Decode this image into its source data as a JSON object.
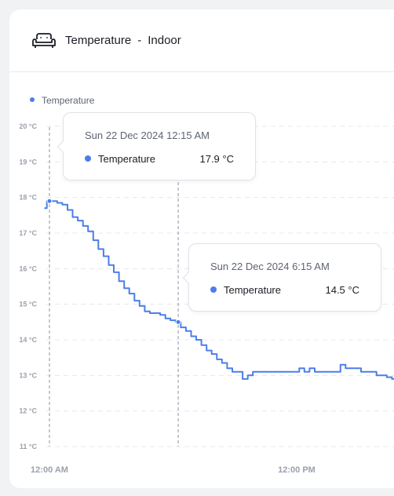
{
  "header": {
    "icon": "sofa-icon",
    "title": "Temperature",
    "separator": "-",
    "subtitle": "Indoor"
  },
  "colors": {
    "series": "#4c7ee8",
    "grid": "#e6e8ec",
    "axis_text": "#9aa0ad"
  },
  "tooltips": [
    {
      "date": "Sun 22 Dec 2024 12:15 AM",
      "series": "Temperature",
      "value": "17.9 °C"
    },
    {
      "date": "Sun 22 Dec 2024 6:15 AM",
      "series": "Temperature",
      "value": "14.5 °C"
    }
  ],
  "chart_data": {
    "type": "line",
    "legend": [
      "Temperature"
    ],
    "legend_position": "top-left",
    "grid": true,
    "ylim": [
      11,
      20
    ],
    "y_unit": "°C",
    "y_ticks": [
      "11 °C",
      "12 °C",
      "13 °C",
      "14 °C",
      "15 °C",
      "16 °C",
      "17 °C",
      "18 °C",
      "19 °C",
      "20 °C"
    ],
    "x_tick_labels": [
      {
        "label": "12:00 AM",
        "hour": 0
      },
      {
        "label": "12:00 PM",
        "hour": 12
      }
    ],
    "series": [
      {
        "name": "Temperature",
        "points": [
          [
            -0.25,
            17.7
          ],
          [
            0,
            17.9
          ],
          [
            0.25,
            17.9
          ],
          [
            0.5,
            17.85
          ],
          [
            0.75,
            17.8
          ],
          [
            1,
            17.65
          ],
          [
            1.25,
            17.45
          ],
          [
            1.5,
            17.35
          ],
          [
            1.75,
            17.2
          ],
          [
            2,
            17.05
          ],
          [
            2.25,
            16.8
          ],
          [
            2.5,
            16.55
          ],
          [
            2.75,
            16.35
          ],
          [
            3,
            16.1
          ],
          [
            3.25,
            15.9
          ],
          [
            3.5,
            15.65
          ],
          [
            3.75,
            15.45
          ],
          [
            4,
            15.3
          ],
          [
            4.25,
            15.1
          ],
          [
            4.5,
            14.95
          ],
          [
            4.75,
            14.8
          ],
          [
            5,
            14.75
          ],
          [
            5.25,
            14.75
          ],
          [
            5.5,
            14.7
          ],
          [
            5.75,
            14.6
          ],
          [
            6,
            14.55
          ],
          [
            6.25,
            14.5
          ],
          [
            6.5,
            14.35
          ],
          [
            6.75,
            14.25
          ],
          [
            7,
            14.1
          ],
          [
            7.25,
            14.0
          ],
          [
            7.5,
            13.85
          ],
          [
            7.75,
            13.7
          ],
          [
            8,
            13.6
          ],
          [
            8.25,
            13.45
          ],
          [
            8.5,
            13.35
          ],
          [
            8.75,
            13.2
          ],
          [
            9,
            13.1
          ],
          [
            9.25,
            13.1
          ],
          [
            9.5,
            12.9
          ],
          [
            9.75,
            13.0
          ],
          [
            10,
            13.1
          ],
          [
            10.5,
            13.1
          ],
          [
            11,
            13.1
          ],
          [
            11.5,
            13.1
          ],
          [
            12,
            13.1
          ],
          [
            12.25,
            13.2
          ],
          [
            12.5,
            13.1
          ],
          [
            12.75,
            13.2
          ],
          [
            13,
            13.1
          ],
          [
            13.5,
            13.1
          ],
          [
            14,
            13.1
          ],
          [
            14.25,
            13.3
          ],
          [
            14.5,
            13.2
          ],
          [
            15,
            13.2
          ],
          [
            15.25,
            13.1
          ],
          [
            15.75,
            13.1
          ],
          [
            16,
            13.0
          ],
          [
            16.25,
            13.0
          ],
          [
            16.5,
            12.95
          ],
          [
            16.75,
            12.9
          ]
        ]
      }
    ],
    "highlighted_hours": [
      0,
      6.25
    ]
  }
}
